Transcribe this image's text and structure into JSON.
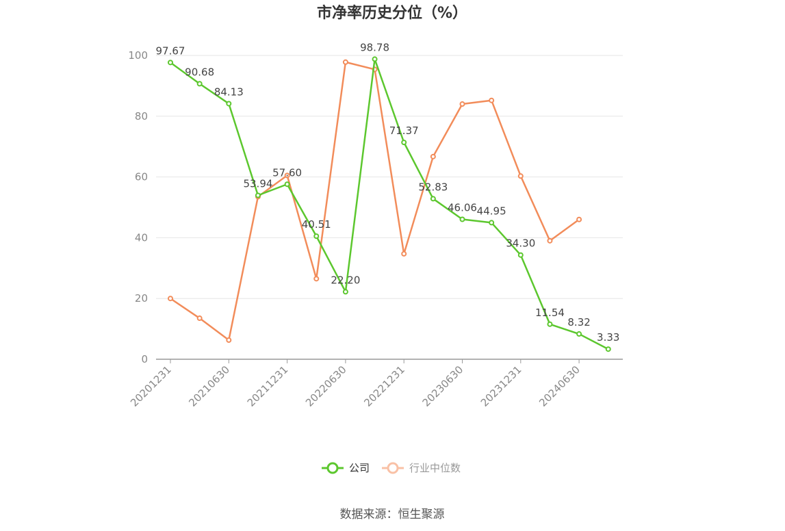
{
  "source_text": "数据来源：恒生聚源",
  "chart_data": {
    "type": "line",
    "title": "市净率历史分位（%）",
    "xlabel": "",
    "ylabel": "",
    "ylim": [
      0,
      100
    ],
    "yticks": [
      0,
      20,
      40,
      60,
      80,
      100
    ],
    "x": [
      "20201231",
      "20210331",
      "20210630",
      "20210930",
      "20211231",
      "20220331",
      "20220630",
      "20220930",
      "20221231",
      "20230331",
      "20230630",
      "20230930",
      "20231231",
      "20240331",
      "20240630",
      "20240930"
    ],
    "xtick_labels": [
      "20201231",
      "20210630",
      "20211231",
      "20220630",
      "20221231",
      "20230630",
      "20231231",
      "20240630"
    ],
    "grid": true,
    "legend_position": "bottom-center",
    "series": [
      {
        "name": "公司",
        "color": "#5cc72e",
        "values": [
          97.67,
          90.68,
          84.13,
          53.94,
          57.6,
          40.51,
          22.2,
          98.78,
          71.37,
          52.83,
          46.06,
          44.95,
          34.3,
          11.54,
          8.32,
          3.33
        ],
        "labels": [
          "97.67",
          "90.68",
          "84.13",
          "53.94",
          "57.60",
          "40.51",
          "22.20",
          "98.78",
          "71.37",
          "52.83",
          "46.06",
          "44.95",
          "34.30",
          "11.54",
          "8.32",
          "3.33"
        ]
      },
      {
        "name": "行业中位数",
        "color": "#f28c5a",
        "values": [
          20,
          13.5,
          6.3,
          53.5,
          60.5,
          26.5,
          97.8,
          95.4,
          34.7,
          66.7,
          84,
          85.2,
          60.3,
          39,
          46,
          null
        ]
      }
    ]
  }
}
